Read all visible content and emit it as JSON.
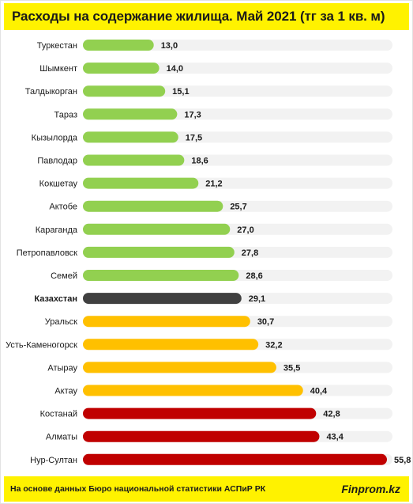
{
  "header": {
    "title": "Расходы на содержание жилища. Май 2021 (тг за 1 кв. м)"
  },
  "footer": {
    "source": "На основе данных Бюро национальной статистики АСПиР РК",
    "brand": "Finprom.kz"
  },
  "colors": {
    "green": "#92d050",
    "gray": "#404040",
    "yellow": "#ffc000",
    "red": "#c00000",
    "track": "#f2f2f2",
    "accent": "#fff200"
  },
  "chart_data": {
    "type": "bar",
    "orientation": "horizontal",
    "title": "Расходы на содержание жилища. Май 2021 (тг за 1 кв. м)",
    "xlim": [
      0,
      55.8
    ],
    "grid": false,
    "categories": [
      "Туркестан",
      "Шымкент",
      "Талдыкорган",
      "Тараз",
      "Кызылорда",
      "Павлодар",
      "Кокшетау",
      "Актобе",
      "Караганда",
      "Петропавловск",
      "Семей",
      "Казахстан",
      "Уральск",
      "Усть-Каменогорск",
      "Атырау",
      "Актау",
      "Костанай",
      "Алматы",
      "Нур-Султан"
    ],
    "values": [
      13.0,
      14.0,
      15.1,
      17.3,
      17.5,
      18.6,
      21.2,
      25.7,
      27.0,
      27.8,
      28.6,
      29.1,
      30.7,
      32.2,
      35.5,
      40.4,
      42.8,
      43.4,
      55.8
    ],
    "value_labels": [
      "13,0",
      "14,0",
      "15,1",
      "17,3",
      "17,5",
      "18,6",
      "21,2",
      "25,7",
      "27,0",
      "27,8",
      "28,6",
      "29,1",
      "30,7",
      "32,2",
      "35,5",
      "40,4",
      "42,8",
      "43,4",
      "55,8"
    ],
    "bar_colors": [
      "green",
      "green",
      "green",
      "green",
      "green",
      "green",
      "green",
      "green",
      "green",
      "green",
      "green",
      "gray",
      "yellow",
      "yellow",
      "yellow",
      "yellow",
      "red",
      "red",
      "red"
    ],
    "highlight_category": "Казахстан"
  }
}
